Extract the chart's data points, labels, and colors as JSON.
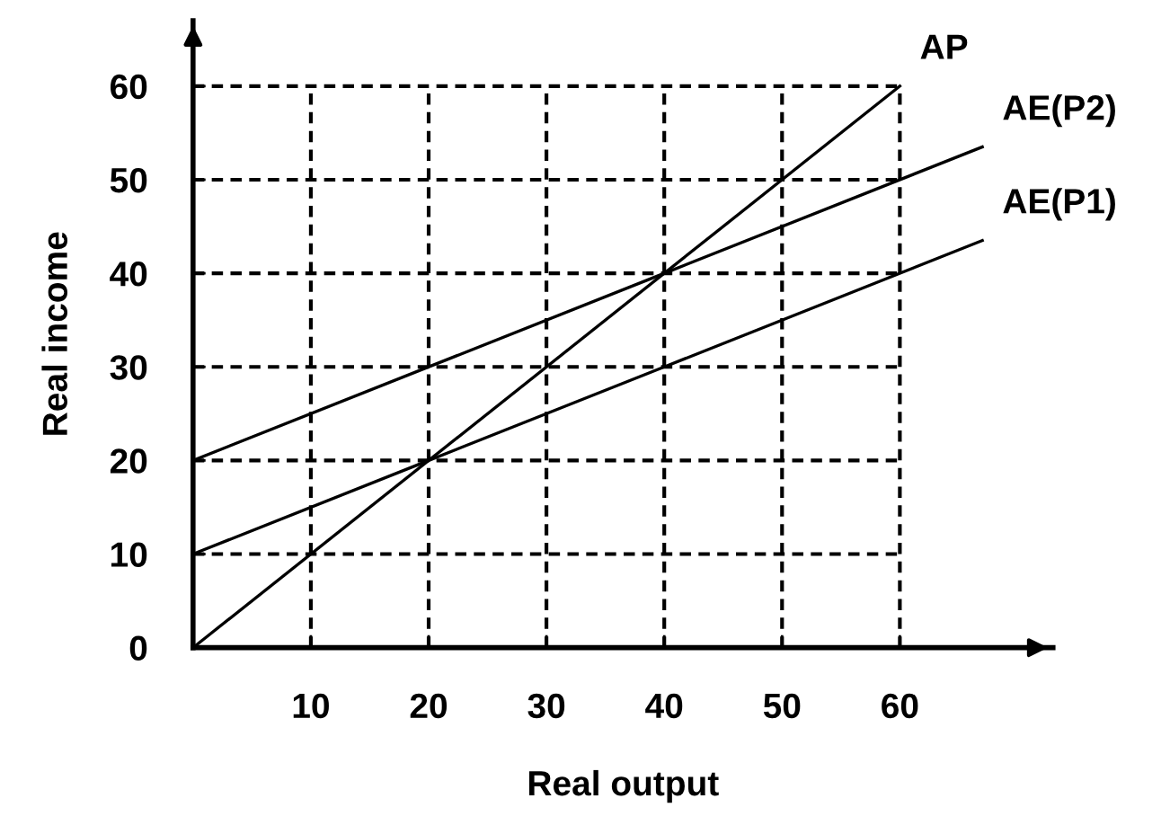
{
  "chart_data": {
    "type": "line",
    "xlabel": "Real output",
    "ylabel": "Real income",
    "series": [
      {
        "name": "AP",
        "color": "#000000",
        "x": [
          0,
          60
        ],
        "values": [
          0,
          60
        ]
      },
      {
        "name": "AE(P2)",
        "color": "#000000",
        "x": [
          0,
          40,
          67
        ],
        "values": [
          20,
          40,
          53.5
        ]
      },
      {
        "name": "AE(P1)",
        "color": "#000000",
        "x": [
          0,
          20,
          40,
          67
        ],
        "values": [
          10,
          20,
          30,
          43.5
        ]
      }
    ],
    "xlim": [
      0,
      73
    ],
    "ylim": [
      0,
      67
    ],
    "xticks": [
      10,
      20,
      30,
      40,
      50,
      60
    ],
    "yticks": [
      0,
      10,
      20,
      30,
      40,
      50,
      60
    ],
    "grid": true,
    "line_style": "solid",
    "marker": "none"
  }
}
